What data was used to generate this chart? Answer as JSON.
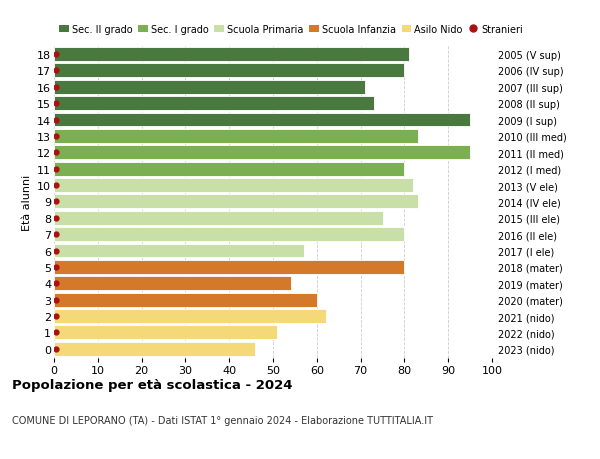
{
  "ages": [
    18,
    17,
    16,
    15,
    14,
    13,
    12,
    11,
    10,
    9,
    8,
    7,
    6,
    5,
    4,
    3,
    2,
    1,
    0
  ],
  "values": [
    81,
    80,
    71,
    73,
    95,
    83,
    95,
    80,
    82,
    83,
    75,
    80,
    57,
    80,
    54,
    60,
    62,
    51,
    46
  ],
  "right_labels": [
    "2005 (V sup)",
    "2006 (IV sup)",
    "2007 (III sup)",
    "2008 (II sup)",
    "2009 (I sup)",
    "2010 (III med)",
    "2011 (II med)",
    "2012 (I med)",
    "2013 (V ele)",
    "2014 (IV ele)",
    "2015 (III ele)",
    "2016 (II ele)",
    "2017 (I ele)",
    "2018 (mater)",
    "2019 (mater)",
    "2020 (mater)",
    "2021 (nido)",
    "2022 (nido)",
    "2023 (nido)"
  ],
  "bar_colors": [
    "#4a7940",
    "#4a7940",
    "#4a7940",
    "#4a7940",
    "#4a7940",
    "#7ab050",
    "#7ab050",
    "#7ab050",
    "#c8dfa8",
    "#c8dfa8",
    "#c8dfa8",
    "#c8dfa8",
    "#c8dfa8",
    "#d4782a",
    "#d4782a",
    "#d4782a",
    "#f5d878",
    "#f5d878",
    "#f5d878"
  ],
  "stranieri_color": "#aa1111",
  "legend_labels": [
    "Sec. II grado",
    "Sec. I grado",
    "Scuola Primaria",
    "Scuola Infanzia",
    "Asilo Nido",
    "Stranieri"
  ],
  "legend_colors": [
    "#4a7940",
    "#7ab050",
    "#c8dfa8",
    "#d4782a",
    "#f5d878",
    "#aa1111"
  ],
  "title": "Popolazione per età scolastica - 2024",
  "subtitle": "COMUNE DI LEPORANO (TA) - Dati ISTAT 1° gennaio 2024 - Elaborazione TUTTITALIA.IT",
  "ylabel_left": "Età alunni",
  "xlim": [
    0,
    100
  ],
  "xticks": [
    0,
    10,
    20,
    30,
    40,
    50,
    60,
    70,
    80,
    90,
    100
  ],
  "ylim": [
    -0.55,
    18.55
  ],
  "background_color": "#ffffff",
  "grid_color": "#cccccc",
  "bar_height": 0.85
}
